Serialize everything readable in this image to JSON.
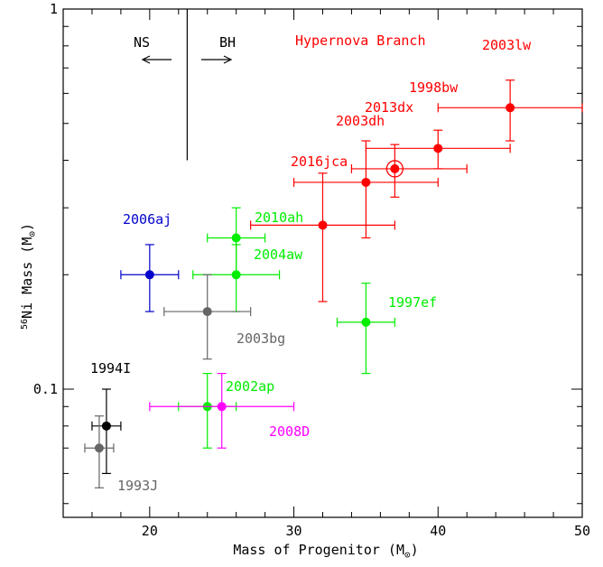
{
  "chart_data": {
    "type": "scatter",
    "title": "",
    "xlabel": "Mass of Progenitor (M⊙)",
    "ylabel": "56Ni Mass (M⊙)",
    "ylabel_parts": {
      "sup": "56",
      "main": "Ni Mass (M",
      "sub": "⊙",
      "end": ")"
    },
    "xlabel_parts": {
      "main": "Mass of Progenitor (M",
      "sub": "⊙",
      "end": ")"
    },
    "xlim": [
      14,
      50
    ],
    "ylim": [
      0.046,
      1.0
    ],
    "yscale": "log",
    "x_ticks": [
      "20",
      "30",
      "40",
      "50"
    ],
    "y_ticks": [
      "0.1",
      "1"
    ],
    "grid": false,
    "points": [
      {
        "name": "1998bw",
        "x": 40,
        "xerr": [
          5,
          5
        ],
        "y": 0.43,
        "yerr": [
          0.05,
          0.05
        ],
        "color": "#ff0000",
        "label": "1998bw"
      },
      {
        "name": "2003lw",
        "x": 45,
        "xerr": [
          5,
          5
        ],
        "y": 0.55,
        "yerr": [
          0.1,
          0.1
        ],
        "color": "#ff0000",
        "label": "2003lw"
      },
      {
        "name": "2013dx",
        "x": 35,
        "xerr": [
          5,
          5
        ],
        "y": 0.35,
        "yerr": [
          0.1,
          0.1
        ],
        "color": "#ff0000",
        "label": "2013dx"
      },
      {
        "name": "2003dh",
        "x": 37,
        "xerr": [
          3,
          5
        ],
        "y": 0.38,
        "yerr": [
          0.06,
          0.06
        ],
        "color": "#ff0000",
        "label": "2003dh",
        "ring": true
      },
      {
        "name": "2016jca",
        "x": 32,
        "xerr": [
          5,
          5
        ],
        "y": 0.27,
        "yerr": [
          0.1,
          0.1
        ],
        "color": "#ff0000",
        "label": "2016jca"
      },
      {
        "name": "2006aj",
        "x": 20,
        "xerr": [
          2,
          2
        ],
        "y": 0.2,
        "yerr": [
          0.04,
          0.04
        ],
        "color": "#0000cc",
        "label": "2006aj"
      },
      {
        "name": "2010ah",
        "x": 26,
        "xerr": [
          2,
          2
        ],
        "y": 0.25,
        "yerr": [
          0.05,
          0.05
        ],
        "color": "#00ee00",
        "label": "2010ah"
      },
      {
        "name": "2004aw",
        "x": 26,
        "xerr": [
          3,
          3
        ],
        "y": 0.2,
        "yerr": [
          0.04,
          0.04
        ],
        "color": "#00ee00",
        "label": "2004aw"
      },
      {
        "name": "2003bg",
        "x": 24,
        "xerr": [
          3,
          3
        ],
        "y": 0.16,
        "yerr": [
          0.04,
          0.04
        ],
        "color": "#666666",
        "label": "2003bg"
      },
      {
        "name": "1997ef",
        "x": 35,
        "xerr": [
          2,
          2
        ],
        "y": 0.15,
        "yerr": [
          0.04,
          0.04
        ],
        "color": "#00ee00",
        "label": "1997ef"
      },
      {
        "name": "2002ap",
        "x": 24,
        "xerr": [
          2,
          2
        ],
        "y": 0.09,
        "yerr": [
          0.02,
          0.02
        ],
        "color": "#00ee00",
        "label": "2002ap"
      },
      {
        "name": "2008D",
        "x": 25,
        "xerr": [
          5,
          5
        ],
        "y": 0.09,
        "yerr": [
          0.02,
          0.02
        ],
        "color": "#ff00ff",
        "label": "2008D"
      },
      {
        "name": "1994I",
        "x": 17,
        "xerr": [
          1,
          1
        ],
        "y": 0.08,
        "yerr": [
          0.02,
          0.02
        ],
        "color": "#000000",
        "label": "1994I"
      },
      {
        "name": "1993J",
        "x": 16.5,
        "xerr": [
          1,
          1
        ],
        "y": 0.07,
        "yerr": [
          0.015,
          0.015
        ],
        "color": "#666666",
        "label": "1993J"
      }
    ],
    "annotations": {
      "hypernova_branch": "Hypernova Branch",
      "ns": "NS",
      "bh": "BH"
    }
  }
}
